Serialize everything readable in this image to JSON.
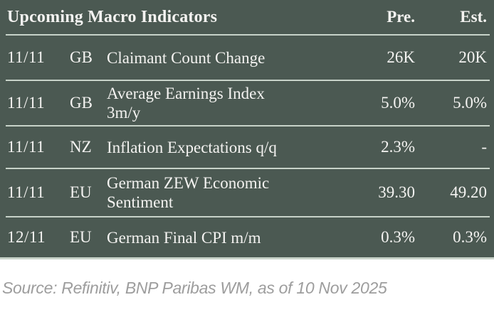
{
  "table": {
    "title": "Upcoming Macro Indicators",
    "columns": {
      "pre": "Pre.",
      "est": "Est."
    },
    "rows": [
      {
        "date": "11/11",
        "country": "GB",
        "indicator": "Claimant Count Change",
        "previous": "26K",
        "estimate": "20K"
      },
      {
        "date": "11/11",
        "country": "GB",
        "indicator": "Average Earnings Index\n3m/y",
        "previous": "5.0%",
        "estimate": "5.0%"
      },
      {
        "date": "11/11",
        "country": "NZ",
        "indicator": "Inflation Expectations q/q",
        "previous": "2.3%",
        "estimate": "-"
      },
      {
        "date": "11/11",
        "country": "EU",
        "indicator": "German ZEW Economic\nSentiment",
        "previous": "39.30",
        "estimate": "49.20"
      },
      {
        "date": "12/11",
        "country": "EU",
        "indicator": "German Final CPI m/m",
        "previous": "0.3%",
        "estimate": "0.3%"
      }
    ]
  },
  "footer": {
    "source": "Source: Refinitiv, BNP Paribas WM, as of 10 Nov 2025"
  },
  "colors": {
    "table_background": "#4b5952",
    "divider": "#c8d3c9",
    "table_text": "#f4f3f1",
    "source_text": "#9d9d9d"
  }
}
